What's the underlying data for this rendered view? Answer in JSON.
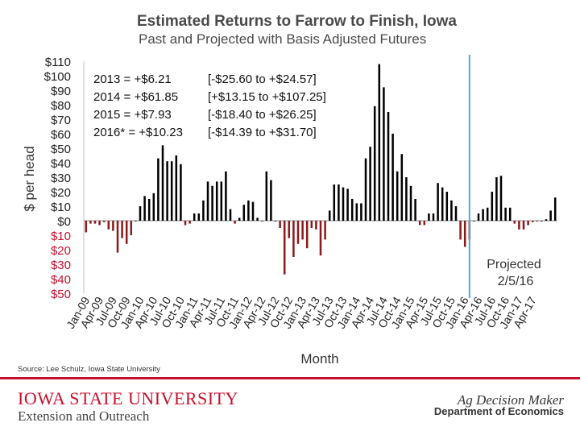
{
  "header": {
    "title": "Estimated Returns to Farrow to Finish, Iowa",
    "subtitle": "Past and Projected with Basis Adjusted Futures"
  },
  "source": "Source: Lee Schulz, Iowa State University",
  "footer": {
    "university": "IOWA STATE UNIVERSITY",
    "extension": "Extension and Outreach",
    "brand": "Ag Decision Maker",
    "department": "Department of Economics"
  },
  "chart_data": {
    "type": "bar",
    "title": "Estimated Returns to Farrow to Finish, Iowa",
    "subtitle": "Past and Projected with Basis Adjusted Futures",
    "xlabel": "Month",
    "ylabel": "$ per head",
    "ylim": [
      -50,
      110
    ],
    "y_ticks": [
      110,
      100,
      90,
      80,
      70,
      60,
      50,
      40,
      30,
      20,
      10,
      0,
      -10,
      -20,
      -30,
      -40,
      -50
    ],
    "y_tick_labels": [
      "$110",
      "$100",
      "$90",
      "$80",
      "$70",
      "$60",
      "$50",
      "$40",
      "$30",
      "$20",
      "$10",
      "$0",
      "$10",
      "$20",
      "$30",
      "$40",
      "$50"
    ],
    "x_tick_labels": [
      "Jan-09",
      "Apr-09",
      "Jul-09",
      "Oct-09",
      "Jan-10",
      "Apr-10",
      "Jul-10",
      "Oct-10",
      "Jan-11",
      "Apr-11",
      "Jul-11",
      "Oct-11",
      "Jan-12",
      "Apr-12",
      "Jul-12",
      "Oct-12",
      "Jan-13",
      "Apr-13",
      "Jul-13",
      "Oct-13",
      "Jan-14",
      "Apr-14",
      "Jul-14",
      "Oct-14",
      "Jan-15",
      "Apr-15",
      "Jul-15",
      "Oct-15",
      "Jan-16",
      "Apr-16",
      "Jul-16",
      "Oct-16",
      "Jan-17",
      "Apr-17"
    ],
    "x_start": "Jan-09",
    "projection_marker_index": 85,
    "projection_label": "Projected",
    "projection_date": "2/5/16",
    "positive_color": "#000000",
    "negative_color": "#8b1a1a",
    "marker_color": "#4fa8d8",
    "annotations": [
      {
        "label": "2013 = +$6.21",
        "range": "[-$25.60 to +$24.57]"
      },
      {
        "label": "2014 = +$61.85",
        "range": "[+$13.15 to +$107.25]"
      },
      {
        "label": "2015 = +$7.93",
        "range": "[-$18.40 to +$26.25]"
      },
      {
        "label": "2016* = +$10.23",
        "range": "[-$14.39 to +$31.70]"
      }
    ],
    "values": [
      -8,
      -2,
      -2,
      -3,
      -1,
      -6,
      -7,
      -22,
      -12,
      -16,
      -10,
      0,
      10,
      17,
      15,
      19,
      43,
      52,
      41,
      41,
      45,
      39,
      -3,
      -2,
      5,
      5,
      14,
      27,
      24,
      27,
      27,
      34,
      8,
      -2,
      2,
      11,
      14,
      13,
      2,
      0,
      34,
      28,
      0,
      -5,
      -37,
      -12,
      -25,
      -16,
      -13,
      -19,
      -5,
      -6,
      -24,
      -13,
      7,
      25,
      25,
      23,
      22,
      15,
      12,
      12,
      43,
      51,
      79,
      108,
      92,
      75,
      60,
      34,
      46,
      30,
      24,
      15,
      -3,
      -3,
      5,
      5,
      26,
      23,
      20,
      14,
      10,
      -13,
      -18,
      -13,
      0,
      5,
      8,
      9,
      20,
      30,
      31,
      9,
      9,
      -2,
      -6,
      -6,
      -3,
      -1,
      0,
      0,
      1,
      7,
      16
    ]
  }
}
